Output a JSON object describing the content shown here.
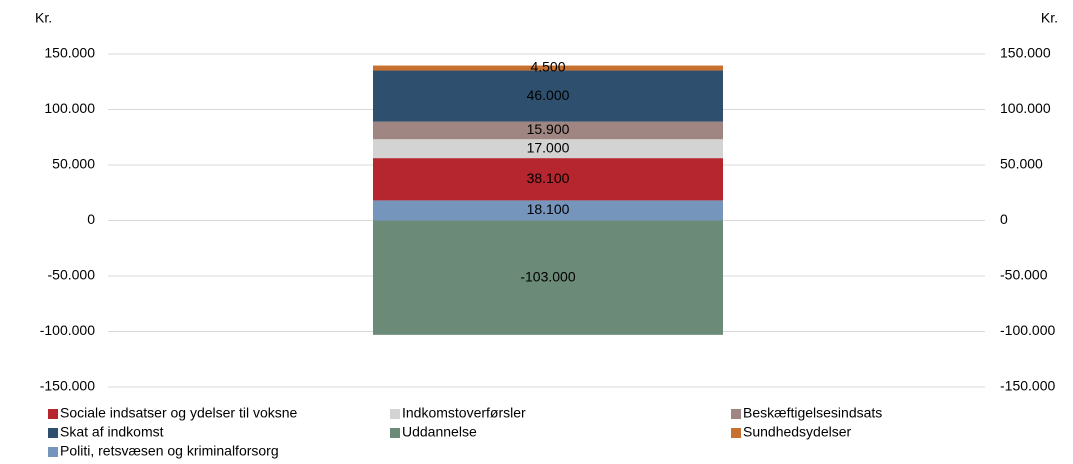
{
  "chart_data": {
    "type": "stacked_bar",
    "ylabel": "Kr.",
    "y2label": "Kr.",
    "categories": [
      null
    ],
    "series": [
      {
        "name": "Politi, retsvæsen og kriminalforsorg",
        "color": "#7595bd",
        "values": [
          18100
        ],
        "value_labels": [
          "18.100"
        ]
      },
      {
        "name": "Sociale indsatser og ydelser til voksne",
        "color": "#b5262e",
        "values": [
          38100
        ],
        "value_labels": [
          "38.100"
        ]
      },
      {
        "name": "Indkomstoverførsler",
        "color": "#d3d3d3",
        "values": [
          17000
        ],
        "value_labels": [
          "17.000"
        ]
      },
      {
        "name": "Beskæftigelsesindsats",
        "color": "#a08683",
        "values": [
          15900
        ],
        "value_labels": [
          "15.900"
        ]
      },
      {
        "name": "Skat af indkomst",
        "color": "#2f4f6e",
        "values": [
          46000
        ],
        "value_labels": [
          "46.000"
        ]
      },
      {
        "name": "Sundhedsydelser",
        "color": "#c8702f",
        "values": [
          4500
        ],
        "value_labels": [
          "4.500"
        ]
      },
      {
        "name": "Uddannelse",
        "color": "#6b8a77",
        "values": [
          -103000
        ],
        "value_labels": [
          "-103.000"
        ]
      }
    ],
    "ylim": [
      -150000,
      150000
    ],
    "yticks": [
      {
        "value": -150000,
        "label": "-150.000"
      },
      {
        "value": -100000,
        "label": "-100.000"
      },
      {
        "value": -50000,
        "label": "-50.000"
      },
      0,
      {
        "value": 50000,
        "label": "50.000"
      },
      {
        "value": 100000,
        "label": "100.000"
      },
      {
        "value": 150000,
        "label": "150.000"
      }
    ],
    "y2lim": [
      -150000,
      150000
    ],
    "y2ticks": [
      {
        "value": -150000,
        "label": "-150.000"
      },
      {
        "value": -100000,
        "label": "-100.000"
      },
      {
        "value": -50000,
        "label": "-50.000"
      },
      0,
      {
        "value": 50000,
        "label": "50.000"
      },
      {
        "value": 100000,
        "label": "100.000"
      },
      {
        "value": 150000,
        "label": "150.000"
      }
    ],
    "grid": true
  }
}
